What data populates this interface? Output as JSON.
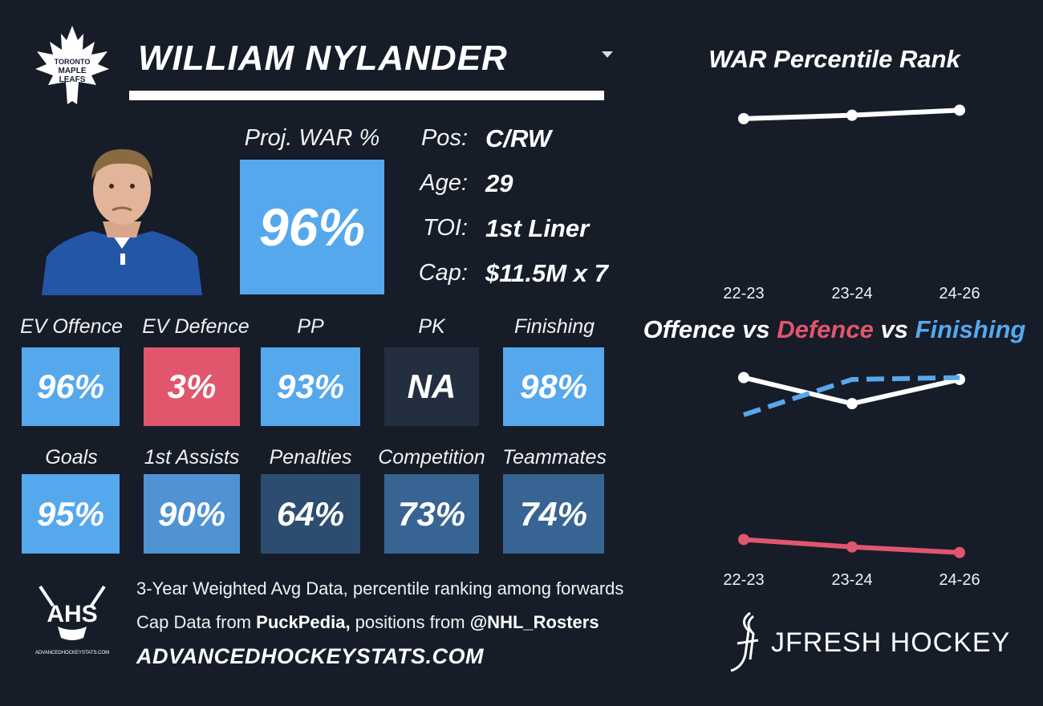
{
  "player": {
    "name": "WILLIAM NYLANDER",
    "team_logo_text": [
      "TORONTO",
      "MAPLE",
      "LEAFS"
    ]
  },
  "proj_war": {
    "label": "Proj. WAR %",
    "value": "96%",
    "color": "#56a8ec"
  },
  "info": [
    {
      "label": "Pos:",
      "value": "C/RW"
    },
    {
      "label": "Age:",
      "value": "29"
    },
    {
      "label": "TOI:",
      "value": "1st Liner"
    },
    {
      "label": "Cap:",
      "value": "$11.5M x 7"
    }
  ],
  "stats_row1": [
    {
      "label": "EV Offence",
      "value": "96%",
      "color": "#56a8ec"
    },
    {
      "label": "EV Defence",
      "value": "3%",
      "color": "#e0566c"
    },
    {
      "label": "PP",
      "value": "93%",
      "color": "#56a8ec"
    },
    {
      "label": "PK",
      "value": "NA",
      "color": "#232f3e"
    },
    {
      "label": "Finishing",
      "value": "98%",
      "color": "#56a8ec"
    }
  ],
  "stats_row2": [
    {
      "label": "Goals",
      "value": "95%",
      "color": "#56a8ec"
    },
    {
      "label": "1st Assists",
      "value": "90%",
      "color": "#4f93d2"
    },
    {
      "label": "Penalties",
      "value": "64%",
      "color": "#2c4d70"
    },
    {
      "label": "Competition",
      "value": "73%",
      "color": "#386493"
    },
    {
      "label": "Teammates",
      "value": "74%",
      "color": "#386493"
    }
  ],
  "footer": {
    "ahs_logo_text": "AHS",
    "ahs_logo_subtext": "ADVANCEDHOCKEYSTATS.COM",
    "line1": "3-Year Weighted Avg Data, percentile ranking among forwards",
    "line2_prefix": "Cap Data from ",
    "line2_bold1": "PuckPedia,",
    "line2_mid": " positions from ",
    "line2_bold2": "@NHL_Rosters",
    "url": "ADVANCEDHOCKEYSTATS.COM",
    "brand": "JFRESH HOCKEY"
  },
  "chart_data": [
    {
      "type": "line",
      "title": "WAR Percentile Rank",
      "categories": [
        "22-23",
        "23-24",
        "24-26"
      ],
      "series": [
        {
          "values": [
            92,
            94,
            97
          ],
          "color": "#ffffff",
          "style": "solid"
        }
      ],
      "ylim": [
        0,
        100
      ],
      "yticks": [
        "0%",
        "25%",
        "50%",
        "75%",
        "100%"
      ],
      "grid": true
    },
    {
      "type": "line",
      "title_parts": [
        {
          "text": "Offence",
          "color": "#ffffff"
        },
        {
          "text": " vs ",
          "color": "#ffffff"
        },
        {
          "text": "Defence",
          "color": "#e0566c"
        },
        {
          "text": " vs ",
          "color": "#ffffff"
        },
        {
          "text": "Finishing",
          "color": "#56a8ec"
        }
      ],
      "categories": [
        "22-23",
        "23-24",
        "24-26"
      ],
      "series": [
        {
          "name": "Offence",
          "values": [
            98,
            84,
            97
          ],
          "color": "#ffffff",
          "style": "solid"
        },
        {
          "name": "Defence",
          "values": [
            11,
            7,
            4
          ],
          "color": "#e0566c",
          "style": "solid"
        },
        {
          "name": "Finishing",
          "values": [
            78,
            97,
            98
          ],
          "color": "#56a8ec",
          "style": "dashed"
        }
      ],
      "ylim": [
        0,
        100
      ],
      "yticks": [
        "0%",
        "25%",
        "50%",
        "75%",
        "100%"
      ],
      "grid": true
    }
  ]
}
